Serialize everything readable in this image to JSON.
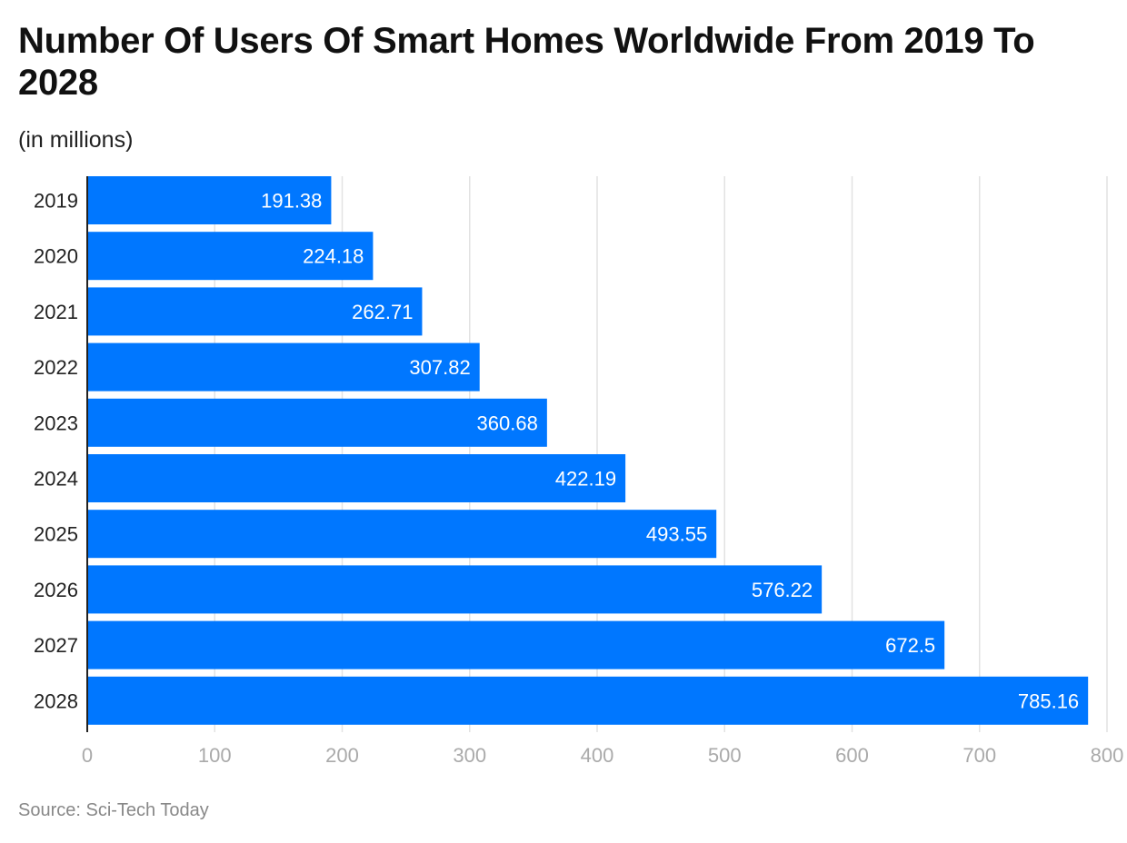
{
  "title": "Number Of Users Of Smart Homes Worldwide From 2019 To 2028",
  "subtitle": "(in millions)",
  "source": "Source: Sci-Tech Today",
  "colors": {
    "bar": "#0077ff",
    "bar_label": "#ffffff",
    "grid": "#e2e2e2",
    "axis": "#222222",
    "tick_label": "#aaaaaa",
    "category_label": "#222222"
  },
  "chart_data": {
    "type": "bar",
    "orientation": "horizontal",
    "categories": [
      "2019",
      "2020",
      "2021",
      "2022",
      "2023",
      "2024",
      "2025",
      "2026",
      "2027",
      "2028"
    ],
    "values": [
      191.38,
      224.18,
      262.71,
      307.82,
      360.68,
      422.19,
      493.55,
      576.22,
      672.5,
      785.16
    ],
    "value_labels": [
      "191.38",
      "224.18",
      "262.71",
      "307.82",
      "360.68",
      "422.19",
      "493.55",
      "576.22",
      "672.5",
      "785.16"
    ],
    "xlim": [
      0,
      800
    ],
    "xticks": [
      0,
      100,
      200,
      300,
      400,
      500,
      600,
      700,
      800
    ],
    "grid": true,
    "legend": false
  }
}
